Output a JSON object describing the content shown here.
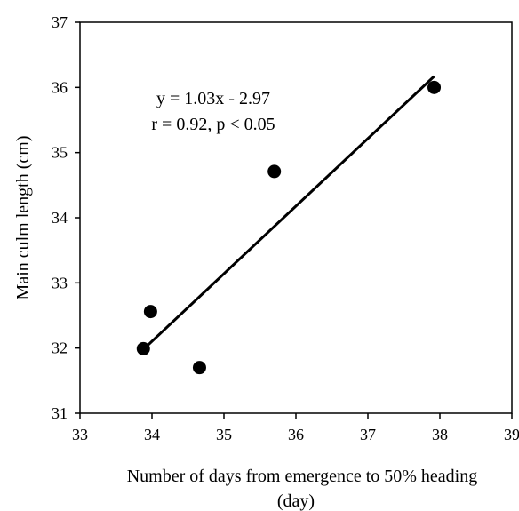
{
  "chart_data": {
    "type": "scatter",
    "xlabel_line1": "Number of days from emergence to 50% heading",
    "xlabel_line2": "(day)",
    "ylabel": "Main culm length (cm)",
    "xlim": [
      33,
      39
    ],
    "ylim": [
      31,
      37
    ],
    "xticks": [
      "33",
      "34",
      "35",
      "36",
      "37",
      "38",
      "39"
    ],
    "yticks": [
      "31",
      "32",
      "33",
      "34",
      "35",
      "36",
      "37"
    ],
    "points": [
      {
        "x": 33.88,
        "y": 31.99
      },
      {
        "x": 33.98,
        "y": 32.56
      },
      {
        "x": 34.66,
        "y": 31.7
      },
      {
        "x": 35.7,
        "y": 34.71
      },
      {
        "x": 37.92,
        "y": 36.0
      }
    ],
    "trendline": {
      "x": [
        33.9,
        37.92
      ],
      "y": [
        32.0,
        36.17
      ]
    },
    "annotations": {
      "equation": "y = 1.03x - 2.97",
      "stats": "r = 0.92, p < 0.05"
    },
    "grid": false,
    "legend": "none",
    "colors": {
      "marker": "#000000",
      "line": "#000000"
    }
  }
}
